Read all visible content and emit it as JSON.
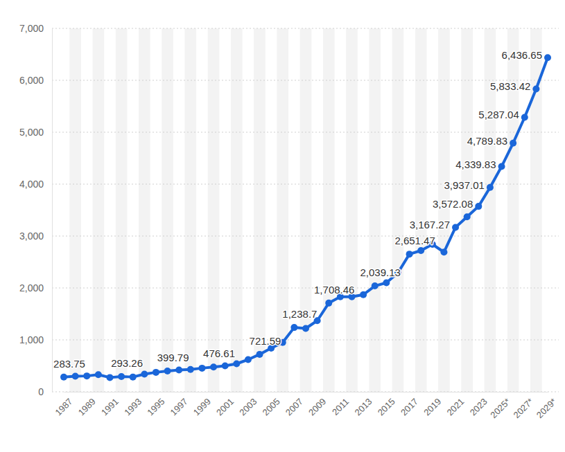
{
  "chart_data": {
    "type": "line",
    "categories": [
      "1987",
      null,
      "1989",
      null,
      "1991",
      null,
      "1993",
      null,
      "1995",
      null,
      "1997",
      null,
      "1999",
      null,
      "2001",
      null,
      "2003",
      null,
      "2005",
      null,
      "2007",
      null,
      "2009",
      null,
      "2011",
      null,
      "2013",
      null,
      "2015",
      null,
      "2017",
      null,
      "2019",
      null,
      "2021",
      null,
      "2023",
      null,
      "2025*",
      null,
      "2027*",
      null,
      "2029*"
    ],
    "values": [
      283.75,
      300,
      305,
      330,
      275,
      293.26,
      285,
      340,
      375,
      399.79,
      420,
      430,
      455,
      476.61,
      500,
      540,
      620,
      721.59,
      840,
      950,
      1238.7,
      1220,
      1370,
      1708.46,
      1830,
      1830,
      1870,
      2039.13,
      2100,
      2290,
      2651.47,
      2720,
      2840,
      2690,
      3167.27,
      3370,
      3572.08,
      3937.01,
      4339.83,
      4789.83,
      5287.04,
      5833.42,
      6436.65
    ],
    "value_labels": [
      "283.75",
      null,
      null,
      null,
      null,
      "293.26",
      null,
      null,
      null,
      "399.79",
      null,
      null,
      null,
      "476.61",
      null,
      null,
      null,
      "721.59",
      null,
      null,
      "1,238.7",
      null,
      null,
      "1,708.46",
      null,
      null,
      null,
      "2,039.13",
      null,
      null,
      "2,651.47",
      null,
      null,
      null,
      "3,167.27",
      null,
      "3,572.08",
      "3,937.01",
      "4,339.83",
      "4,789.83",
      "5,287.04",
      "5,833.42",
      "6,436.65"
    ],
    "color": "#1a66d9",
    "marker": "circle",
    "data_labels": true,
    "grid": true,
    "ylim": [
      0,
      7000
    ],
    "yticks": [
      0,
      {
        "value": 1000,
        "label": "1,000"
      },
      {
        "value": 2000,
        "label": "2,000"
      },
      {
        "value": 3000,
        "label": "3,000"
      },
      {
        "value": 4000,
        "label": "4,000"
      },
      {
        "value": 5000,
        "label": "5,000"
      },
      {
        "value": 6000,
        "label": "6,000"
      },
      {
        "value": 7000,
        "label": "7,000"
      }
    ]
  }
}
